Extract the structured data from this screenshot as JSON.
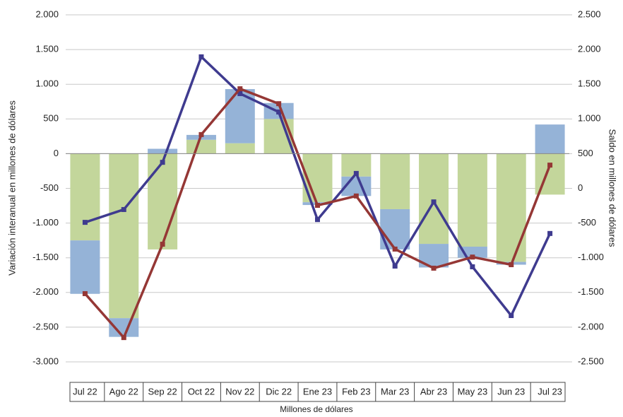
{
  "chart_data": {
    "type": "bar-line",
    "y_label": "Variación interanual en millones de dólares",
    "y2_label": "Saldo en millones de dólares",
    "x_label": "Millones de dólares",
    "categories": [
      "Jul 22",
      "Ago 22",
      "Sep 22",
      "Oct 22",
      "Nov 22",
      "Dic 22",
      "Ene 23",
      "Feb 23",
      "Mar 23",
      "Abr 23",
      "May 23",
      "Jun 23",
      "Jul 23"
    ],
    "series": [
      {
        "kind": "bar",
        "color": "#c3d69b",
        "values": [
          -1250,
          -2370,
          -1380,
          200,
          150,
          500,
          -700,
          -330,
          -800,
          -1300,
          -1340,
          -1560,
          -590
        ]
      },
      {
        "kind": "bar",
        "color": "#95b3d7",
        "values": [
          -770,
          -270,
          70,
          70,
          780,
          230,
          -40,
          -280,
          -580,
          -340,
          -160,
          -40,
          420
        ]
      },
      {
        "kind": "line",
        "axis": "y2",
        "color": "#3f3b8f",
        "values": [
          -490,
          -305,
          375,
          1895,
          1365,
          1100,
          -450,
          215,
          -1120,
          -195,
          -1130,
          -1833,
          -650
        ]
      },
      {
        "kind": "line",
        "axis": "y2",
        "color": "#953735",
        "values": [
          -1517,
          -2150,
          -805,
          775,
          1435,
          1220,
          -245,
          -110,
          -875,
          -1150,
          -990,
          -1100,
          335
        ]
      }
    ],
    "ylim": [
      -3000,
      2000
    ],
    "yticks": [
      {
        "value": 2000,
        "label": "2.000"
      },
      {
        "value": 1500,
        "label": "1.500"
      },
      {
        "value": 1000,
        "label": "1.000"
      },
      500,
      0,
      -500,
      {
        "value": -1000,
        "label": "-1.000"
      },
      {
        "value": -1500,
        "label": "-1.500"
      },
      {
        "value": -2000,
        "label": "-2.000"
      },
      {
        "value": -2500,
        "label": "-2.500"
      },
      {
        "value": -3000,
        "label": "-3.000"
      }
    ],
    "y2lim": [
      -2500,
      2500
    ],
    "y2ticks": [
      {
        "value": 2500,
        "label": "2.500"
      },
      {
        "value": 2000,
        "label": "2.000"
      },
      {
        "value": 1500,
        "label": "1.500"
      },
      {
        "value": 1000,
        "label": "1.000"
      },
      500,
      0,
      -500,
      {
        "value": -1000,
        "label": "-1.000"
      },
      {
        "value": -1500,
        "label": "-1.500"
      },
      {
        "value": -2000,
        "label": "-2.000"
      },
      {
        "value": -2500,
        "label": "-2.500"
      }
    ],
    "grid": true
  }
}
